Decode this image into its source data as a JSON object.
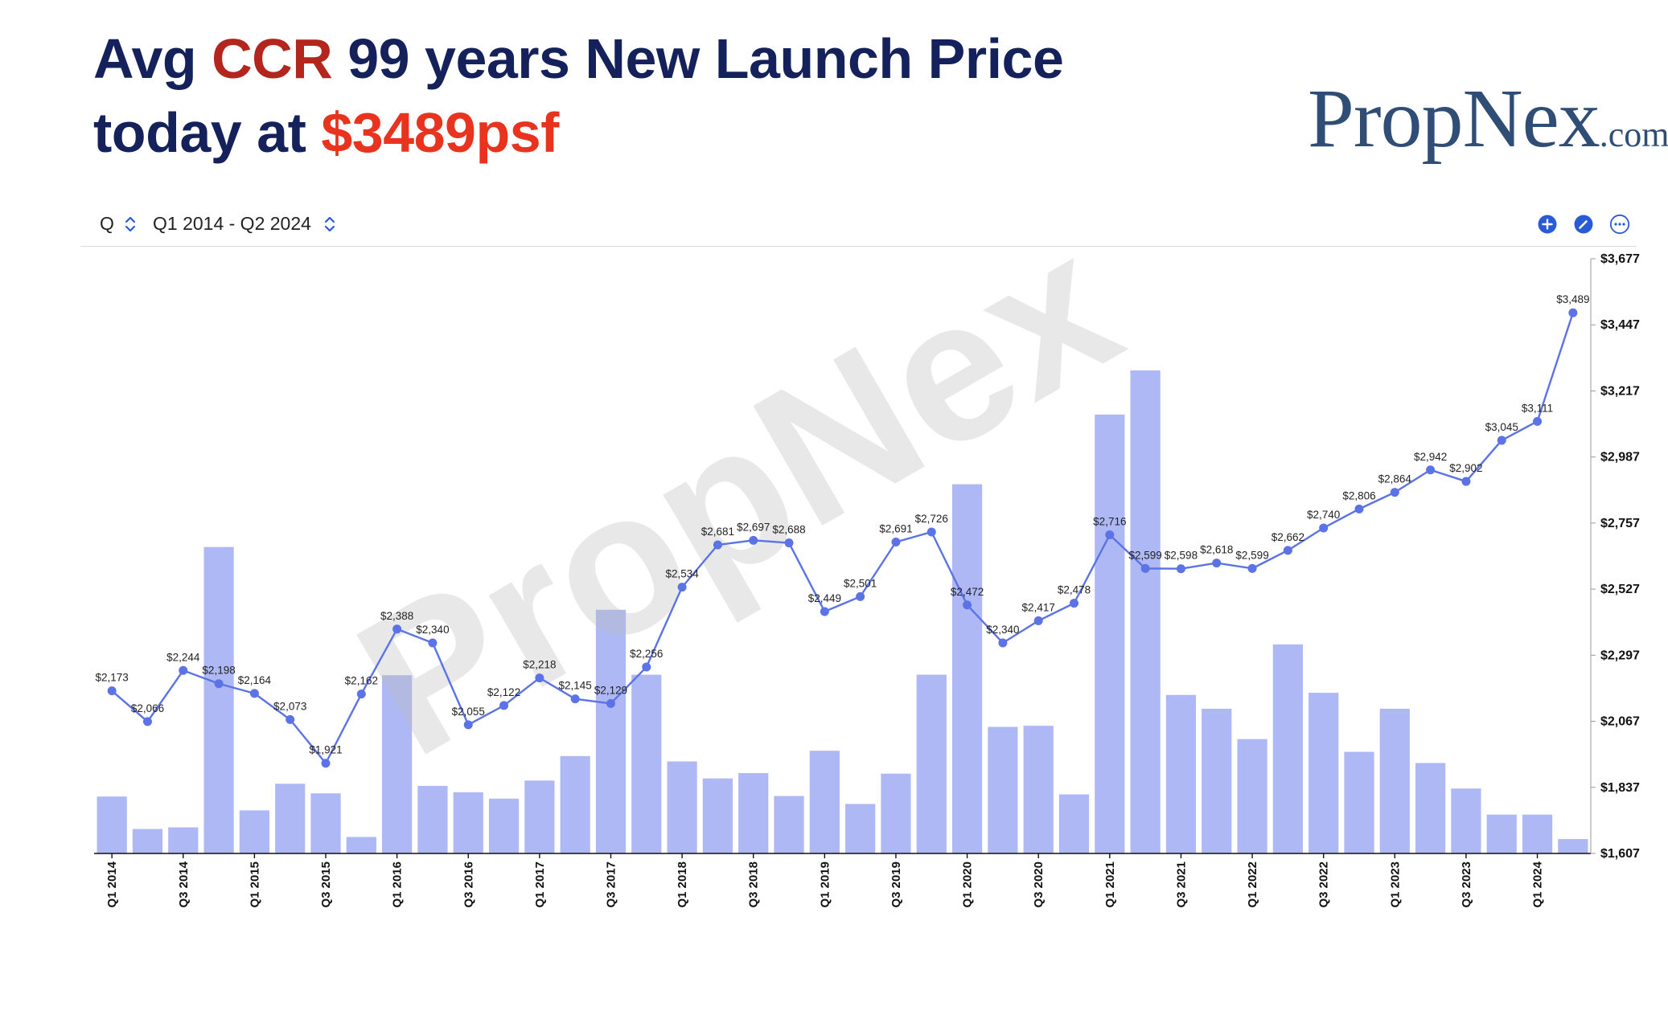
{
  "headline": {
    "line1": {
      "prefix": "Avg ",
      "accent": "CCR",
      "suffix": " 99 years New Launch Price"
    },
    "line2": {
      "prefix": "today at ",
      "accent": "$3489psf"
    },
    "colors": {
      "main": "#14215a",
      "accent_dark": "#b3261e",
      "accent_bright": "#e8331f"
    }
  },
  "logo": {
    "main": "PropNex",
    "suffix": ".com",
    "color": "#2f4d75"
  },
  "watermark": "PropNex",
  "toolbar": {
    "frequency": "Q",
    "period": "Q1 2014 - Q2 2024",
    "icons": [
      "chevron-updown-icon",
      "plus-circle-icon",
      "edit-circle-icon",
      "more-circle-icon"
    ],
    "accent": "#2a5bd7"
  },
  "chart_data": {
    "type": "bar",
    "categories": [
      "Q1 2014",
      "Q2 2014",
      "Q3 2014",
      "Q4 2014",
      "Q1 2015",
      "Q2 2015",
      "Q3 2015",
      "Q4 2015",
      "Q1 2016",
      "Q2 2016",
      "Q3 2016",
      "Q4 2016",
      "Q1 2017",
      "Q2 2017",
      "Q3 2017",
      "Q4 2017",
      "Q1 2018",
      "Q2 2018",
      "Q3 2018",
      "Q4 2018",
      "Q1 2019",
      "Q2 2019",
      "Q3 2019",
      "Q4 2019",
      "Q1 2020",
      "Q2 2020",
      "Q3 2020",
      "Q4 2020",
      "Q1 2021",
      "Q2 2021",
      "Q3 2021",
      "Q4 2021",
      "Q1 2022",
      "Q2 2022",
      "Q3 2022",
      "Q4 2022",
      "Q1 2023",
      "Q2 2023",
      "Q3 2023",
      "Q4 2023",
      "Q1 2024",
      "Q2 2024"
    ],
    "x_tick_labels": [
      "Q1 2014",
      "Q3 2014",
      "Q1 2015",
      "Q3 2015",
      "Q1 2016",
      "Q3 2016",
      "Q1 2017",
      "Q3 2017",
      "Q1 2018",
      "Q3 2018",
      "Q1 2019",
      "Q3 2019",
      "Q1 2020",
      "Q3 2020",
      "Q1 2021",
      "Q3 2021",
      "Q1 2022",
      "Q3 2022",
      "Q1 2023",
      "Q3 2023",
      "Q1 2024"
    ],
    "bar_values_relative": [
      0.107,
      0.046,
      0.049,
      0.576,
      0.081,
      0.131,
      0.113,
      0.031,
      0.335,
      0.127,
      0.115,
      0.103,
      0.137,
      0.183,
      0.458,
      0.336,
      0.173,
      0.141,
      0.151,
      0.108,
      0.193,
      0.093,
      0.15,
      0.336,
      0.694,
      0.238,
      0.24,
      0.111,
      0.825,
      0.908,
      0.298,
      0.272,
      0.215,
      0.393,
      0.302,
      0.191,
      0.272,
      0.17,
      0.122,
      0.073,
      0.073,
      0.027
    ],
    "series": [
      {
        "values": [
          2173,
          2066,
          2244,
          2198,
          2164,
          2073,
          1921,
          2162,
          2388,
          2340,
          2055,
          2122,
          2218,
          2145,
          2129,
          2256,
          2534,
          2681,
          2697,
          2688,
          2449,
          2501,
          2691,
          2726,
          2472,
          2340,
          2417,
          2478,
          2716,
          2599,
          2598,
          2618,
          2599,
          2662,
          2740,
          2806,
          2864,
          2942,
          2902,
          3045,
          3111,
          3489
        ],
        "point_labels": [
          "$2,173",
          "$2,066",
          "$2,244",
          "$2,198",
          "$2,164",
          "$2,073",
          "$1,921",
          "$2,162",
          "$2,388",
          "$2,340",
          "$2,055",
          "$2,122",
          "$2,218",
          "$2,145",
          "$2,129",
          "$2,256",
          "$2,534",
          "$2,681",
          "$2,697",
          "$2,688",
          "$2,449",
          "$2,501",
          "$2,691",
          "$2,726",
          "$2,472",
          "$2,340",
          "$2,417",
          "$2,478",
          "$2,716",
          "$2,599",
          "$2,598",
          "$2,618",
          "$2,599",
          "$2,662",
          "$2,740",
          "$2,806",
          "$2,864",
          "$2,942",
          "$2,902",
          "$3,045",
          "$3,111",
          "$3,489"
        ]
      }
    ],
    "y_axis": {
      "ticks": [
        "$1,607",
        "$1,837",
        "$2,067",
        "$2,297",
        "$2,527",
        "$2,757",
        "$2,987",
        "$3,217",
        "$3,447",
        "$3,677"
      ],
      "ylim": [
        1607,
        3677
      ],
      "position": "right"
    },
    "grid": false,
    "colors": {
      "bar": "#aeb8f4",
      "line": "#5b73e6",
      "point": "#5b73e6",
      "watermark": "#bdbdbd"
    }
  }
}
